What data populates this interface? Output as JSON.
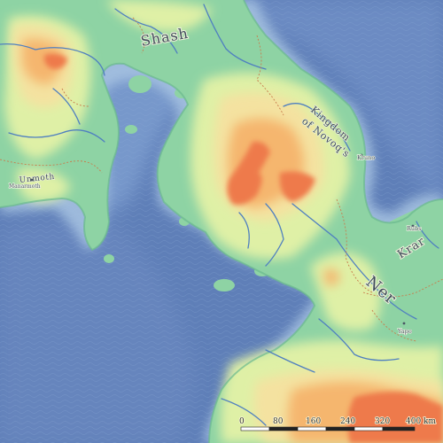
{
  "map": {
    "regions": {
      "shash": "Shash",
      "kingdom_line1": "Kingdom",
      "kingdom_line2": "of Novoq's",
      "ner": "Ner",
      "krar": "Krar",
      "unmoth": "Unmoth"
    },
    "cities": {
      "kruno": "Kruno",
      "ruba": "Rubs",
      "yapo": "Yapo",
      "maragon": "Manarmoth"
    },
    "scale_bar": {
      "ticks": [
        "0",
        "80",
        "160",
        "240",
        "320",
        "400 km"
      ]
    },
    "colors": {
      "deep_sea": "#5f7fb8",
      "shallow_sea": "#7e9fd0",
      "coast_water": "#a8c4e2",
      "lowland": "#9fd8a8",
      "plain": "#dff0a6",
      "hills": "#f4e2a0",
      "upland": "#f5b66e",
      "mountain": "#ee7a4c",
      "river": "#4f7fc0",
      "border": "#c87c4c"
    }
  }
}
